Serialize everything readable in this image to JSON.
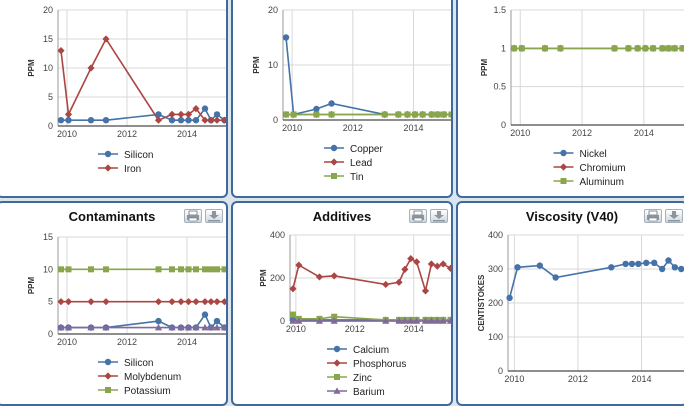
{
  "panels": [
    {
      "id": "metals-a",
      "title": "",
      "tools": false,
      "chart_data": {
        "type": "line",
        "ylabel": "PPM",
        "ylim": [
          0,
          20
        ],
        "yticks": [
          0,
          5,
          10,
          15,
          20
        ],
        "xlim": [
          2009.7,
          2015.3
        ],
        "xticks": [
          2010,
          2012,
          2014
        ],
        "grid": true,
        "legend": "bottom",
        "series": [
          {
            "name": "Silicon",
            "color": "#4572a7",
            "marker": "circle",
            "x": [
              2009.8,
              2010.05,
              2010.8,
              2011.3,
              2013.05,
              2013.5,
              2013.8,
              2014.05,
              2014.3,
              2014.6,
              2014.8,
              2015.0,
              2015.25
            ],
            "y": [
              1,
              1,
              1,
              1,
              2,
              1,
              1,
              1,
              1,
              3,
              1,
              2,
              1
            ]
          },
          {
            "name": "Iron",
            "color": "#aa4643",
            "marker": "diamond",
            "x": [
              2009.8,
              2010.05,
              2010.8,
              2011.3,
              2013.05,
              2013.5,
              2013.8,
              2014.05,
              2014.3,
              2014.6,
              2014.8,
              2015.0,
              2015.25
            ],
            "y": [
              13,
              2,
              10,
              15,
              1,
              2,
              2,
              2,
              3,
              1,
              1,
              1,
              1
            ]
          }
        ]
      }
    },
    {
      "id": "metals-b",
      "title": "",
      "tools": false,
      "chart_data": {
        "type": "line",
        "ylabel": "PPM",
        "ylim": [
          0,
          20
        ],
        "yticks": [
          0,
          10,
          20
        ],
        "xlim": [
          2009.7,
          2015.3
        ],
        "xticks": [
          2010,
          2012,
          2014
        ],
        "grid": true,
        "legend": "bottom",
        "series": [
          {
            "name": "Copper",
            "color": "#4572a7",
            "marker": "circle",
            "x": [
              2009.8,
              2010.05,
              2010.8,
              2011.3,
              2013.05,
              2013.5,
              2013.8,
              2014.05,
              2014.3,
              2014.6,
              2014.8,
              2015.0,
              2015.25
            ],
            "y": [
              15,
              1,
              2,
              3,
              1,
              1,
              1,
              1,
              1,
              1,
              1,
              1,
              1
            ]
          },
          {
            "name": "Lead",
            "color": "#aa4643",
            "marker": "diamond",
            "x": [
              2009.8,
              2010.05,
              2010.8,
              2011.3,
              2013.05,
              2013.5,
              2013.8,
              2014.05,
              2014.3,
              2014.6,
              2014.8,
              2015.0,
              2015.25
            ],
            "y": [
              1,
              1,
              1,
              1,
              1,
              1,
              1,
              1,
              1,
              1,
              1,
              1,
              1
            ]
          },
          {
            "name": "Tin",
            "color": "#89a54e",
            "marker": "square",
            "x": [
              2009.8,
              2010.05,
              2010.8,
              2011.3,
              2013.05,
              2013.5,
              2013.8,
              2014.05,
              2014.3,
              2014.6,
              2014.8,
              2015.0,
              2015.25
            ],
            "y": [
              1,
              1,
              1,
              1,
              1,
              1,
              1,
              1,
              1,
              1,
              1,
              1,
              1
            ]
          }
        ]
      }
    },
    {
      "id": "metals-c",
      "title": "",
      "tools": false,
      "chart_data": {
        "type": "line",
        "ylabel": "PPM",
        "ylim": [
          0,
          1.5
        ],
        "yticks": [
          0,
          0.5,
          1,
          1.5
        ],
        "xlim": [
          2009.7,
          2015.3
        ],
        "xticks": [
          2010,
          2012,
          2014
        ],
        "grid": true,
        "legend": "bottom",
        "series": [
          {
            "name": "Nickel",
            "color": "#4572a7",
            "marker": "circle",
            "x": [
              2009.8,
              2010.05,
              2010.8,
              2011.3,
              2013.05,
              2013.5,
              2013.8,
              2014.05,
              2014.3,
              2014.6,
              2014.8,
              2015.0,
              2015.25
            ],
            "y": [
              1,
              1,
              1,
              1,
              1,
              1,
              1,
              1,
              1,
              1,
              1,
              1,
              1
            ]
          },
          {
            "name": "Chromium",
            "color": "#aa4643",
            "marker": "diamond",
            "x": [
              2009.8,
              2010.05,
              2010.8,
              2011.3,
              2013.05,
              2013.5,
              2013.8,
              2014.05,
              2014.3,
              2014.6,
              2014.8,
              2015.0,
              2015.25
            ],
            "y": [
              1,
              1,
              1,
              1,
              1,
              1,
              1,
              1,
              1,
              1,
              1,
              1,
              1
            ]
          },
          {
            "name": "Aluminum",
            "color": "#89a54e",
            "marker": "square",
            "x": [
              2009.8,
              2010.05,
              2010.8,
              2011.3,
              2013.05,
              2013.5,
              2013.8,
              2014.05,
              2014.3,
              2014.6,
              2014.8,
              2015.0,
              2015.25
            ],
            "y": [
              1,
              1,
              1,
              1,
              1,
              1,
              1,
              1,
              1,
              1,
              1,
              1,
              1
            ]
          }
        ]
      }
    },
    {
      "id": "contaminants",
      "title": "Contaminants",
      "tools": true,
      "chart_data": {
        "type": "line",
        "title": "Contaminants",
        "ylabel": "PPM",
        "ylim": [
          0,
          15
        ],
        "yticks": [
          0,
          5,
          10,
          15
        ],
        "xlim": [
          2009.7,
          2015.3
        ],
        "xticks": [
          2010,
          2012,
          2014
        ],
        "grid": true,
        "legend": "bottom",
        "series": [
          {
            "name": "Silicon",
            "color": "#4572a7",
            "marker": "circle",
            "x": [
              2009.8,
              2010.05,
              2010.8,
              2011.3,
              2013.05,
              2013.5,
              2013.8,
              2014.05,
              2014.3,
              2014.6,
              2014.8,
              2015.0,
              2015.25
            ],
            "y": [
              1,
              1,
              1,
              1,
              2,
              1,
              1,
              1,
              1,
              3,
              1,
              2,
              1
            ]
          },
          {
            "name": "Molybdenum",
            "color": "#aa4643",
            "marker": "diamond",
            "x": [
              2009.8,
              2010.05,
              2010.8,
              2011.3,
              2013.05,
              2013.5,
              2013.8,
              2014.05,
              2014.3,
              2014.6,
              2014.8,
              2015.0,
              2015.25
            ],
            "y": [
              5,
              5,
              5,
              5,
              5,
              5,
              5,
              5,
              5,
              5,
              5,
              5,
              5
            ]
          },
          {
            "name": "Potassium",
            "color": "#89a54e",
            "marker": "square",
            "x": [
              2009.8,
              2010.05,
              2010.8,
              2011.3,
              2013.05,
              2013.5,
              2013.8,
              2014.05,
              2014.3,
              2014.6,
              2014.8,
              2015.0,
              2015.25
            ],
            "y": [
              10,
              10,
              10,
              10,
              10,
              10,
              10,
              10,
              10,
              10,
              10,
              10,
              10
            ]
          },
          {
            "name": "",
            "color": "#80699b",
            "marker": "triangle",
            "x": [
              2009.8,
              2010.05,
              2010.8,
              2011.3,
              2013.05,
              2013.5,
              2013.8,
              2014.05,
              2014.3,
              2014.6,
              2014.8,
              2015.0,
              2015.25
            ],
            "y": [
              1,
              1,
              1,
              1,
              1,
              1,
              1,
              1,
              1,
              1,
              1,
              1,
              1
            ]
          }
        ]
      }
    },
    {
      "id": "additives",
      "title": "Additives",
      "tools": true,
      "chart_data": {
        "type": "line",
        "title": "Additives",
        "ylabel": "PPM",
        "ylim": [
          0,
          400
        ],
        "yticks": [
          0,
          200,
          400
        ],
        "xlim": [
          2009.8,
          2015.3
        ],
        "xticks": [
          2010,
          2012,
          2014
        ],
        "grid": true,
        "legend": "bottom",
        "series": [
          {
            "name": "Calcium",
            "color": "#4572a7",
            "marker": "circle",
            "x": [
              2009.9,
              2010.1,
              2010.8,
              2011.3,
              2013.05,
              2013.5,
              2013.7,
              2013.9,
              2014.1,
              2014.4,
              2014.6,
              2014.8,
              2015.0,
              2015.25
            ],
            "y": [
              5,
              5,
              5,
              5,
              5,
              5,
              5,
              5,
              5,
              5,
              5,
              5,
              5,
              5
            ]
          },
          {
            "name": "Phosphorus",
            "color": "#aa4643",
            "marker": "diamond",
            "x": [
              2009.9,
              2010.1,
              2010.8,
              2011.3,
              2013.05,
              2013.5,
              2013.7,
              2013.9,
              2014.1,
              2014.4,
              2014.6,
              2014.8,
              2015.0,
              2015.25
            ],
            "y": [
              150,
              260,
              205,
              210,
              170,
              180,
              240,
              290,
              275,
              140,
              265,
              255,
              265,
              245
            ]
          },
          {
            "name": "Zinc",
            "color": "#89a54e",
            "marker": "square",
            "x": [
              2009.9,
              2010.1,
              2010.8,
              2011.3,
              2013.05,
              2013.5,
              2013.7,
              2013.9,
              2014.1,
              2014.4,
              2014.6,
              2014.8,
              2015.0,
              2015.25
            ],
            "y": [
              30,
              10,
              10,
              20,
              5,
              5,
              5,
              5,
              5,
              5,
              5,
              5,
              5,
              5
            ]
          },
          {
            "name": "Barium",
            "color": "#80699b",
            "marker": "triangle",
            "x": [
              2009.9,
              2010.1,
              2010.8,
              2011.3,
              2013.05,
              2013.5,
              2013.7,
              2013.9,
              2014.1,
              2014.4,
              2014.6,
              2014.8,
              2015.0,
              2015.25
            ],
            "y": [
              0,
              0,
              0,
              0,
              0,
              0,
              0,
              0,
              0,
              0,
              0,
              0,
              0,
              0
            ]
          }
        ]
      }
    },
    {
      "id": "viscosity",
      "title": "Viscosity (V40)",
      "tools": true,
      "chart_data": {
        "type": "line",
        "title": "Viscosity (V40)",
        "ylabel": "CENTISTOKES",
        "ylim": [
          0,
          400
        ],
        "yticks": [
          0,
          100,
          200,
          300,
          400
        ],
        "xlim": [
          2009.8,
          2015.4
        ],
        "xticks": [
          2010,
          2012,
          2014
        ],
        "grid": true,
        "legend": "none",
        "series": [
          {
            "name": "",
            "color": "#4572a7",
            "marker": "circle",
            "x": [
              2009.85,
              2010.1,
              2010.8,
              2011.3,
              2013.05,
              2013.5,
              2013.7,
              2013.9,
              2014.15,
              2014.4,
              2014.65,
              2014.85,
              2015.05,
              2015.25
            ],
            "y": [
              215,
              305,
              310,
              275,
              305,
              315,
              315,
              315,
              318,
              318,
              300,
              325,
              305,
              300
            ]
          }
        ]
      }
    }
  ]
}
